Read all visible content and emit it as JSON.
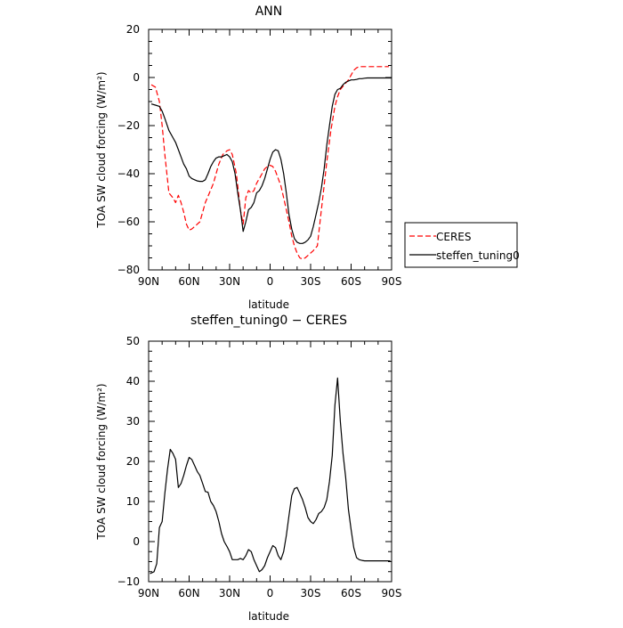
{
  "chart_data": [
    {
      "type": "line",
      "title": "ANN",
      "xlabel": "latitude",
      "ylabel": "TOA SW cloud forcing (W/m²)",
      "xlim": [
        90,
        -90
      ],
      "ylim": [
        -80,
        20
      ],
      "x_ticks": [
        90,
        60,
        30,
        0,
        -30,
        -60,
        -90
      ],
      "x_tick_labels": [
        "90N",
        "60N",
        "30N",
        "0",
        "30S",
        "60S",
        "90S"
      ],
      "y_ticks": [
        -80,
        -60,
        -40,
        -20,
        0,
        20
      ],
      "y_tick_labels": [
        "−80",
        "−60",
        "−40",
        "−20",
        "0",
        "20"
      ],
      "legend_position": "right",
      "series": [
        {
          "name": "CERES",
          "color": "#ff0000",
          "dash": "dashed",
          "x": [
            88,
            85,
            82,
            80,
            78,
            75,
            72,
            70,
            68,
            66,
            64,
            62,
            60,
            58,
            56,
            54,
            52,
            50,
            48,
            45,
            42,
            40,
            38,
            35,
            32,
            30,
            28,
            25,
            22,
            20,
            18,
            16,
            14,
            12,
            10,
            8,
            6,
            4,
            2,
            0,
            -2,
            -4,
            -6,
            -8,
            -10,
            -12,
            -14,
            -16,
            -18,
            -20,
            -22,
            -24,
            -26,
            -28,
            -30,
            -32,
            -35,
            -38,
            -40,
            -42,
            -45,
            -48,
            -50,
            -52,
            -55,
            -58,
            -60,
            -62,
            -64,
            -66,
            -68,
            -70,
            -72,
            -75,
            -78,
            -80,
            -82,
            -85,
            -88
          ],
          "values": [
            -3,
            -4,
            -10,
            -20,
            -32,
            -48,
            -50,
            -52,
            -49,
            -52,
            -56,
            -61,
            -63.5,
            -63,
            -62,
            -61,
            -60,
            -56,
            -52,
            -48,
            -44,
            -40,
            -36,
            -32,
            -30.5,
            -30,
            -32,
            -40,
            -55,
            -61,
            -50,
            -47,
            -48,
            -47,
            -44,
            -42,
            -40,
            -38,
            -37,
            -36.5,
            -37,
            -39,
            -42,
            -45,
            -50,
            -55,
            -60,
            -66,
            -70,
            -73,
            -75,
            -75.5,
            -75,
            -74,
            -73,
            -72,
            -70,
            -55,
            -45,
            -35,
            -22,
            -12,
            -8,
            -5,
            -3,
            -1,
            1,
            3,
            4,
            4.5,
            4.5,
            4.5,
            4.5,
            4.5,
            4.5,
            4.5,
            4.5,
            4.5,
            4.5
          ]
        },
        {
          "name": "steffen_tuning0",
          "color": "#000000",
          "dash": "solid",
          "x": [
            88,
            85,
            82,
            80,
            78,
            75,
            72,
            70,
            68,
            66,
            64,
            62,
            60,
            58,
            56,
            54,
            52,
            50,
            48,
            46,
            44,
            42,
            40,
            38,
            36,
            34,
            32,
            30,
            28,
            26,
            24,
            22,
            20,
            18,
            16,
            14,
            12,
            10,
            8,
            6,
            4,
            2,
            0,
            -2,
            -4,
            -6,
            -8,
            -10,
            -12,
            -14,
            -16,
            -18,
            -20,
            -22,
            -24,
            -26,
            -28,
            -30,
            -32,
            -34,
            -36,
            -38,
            -40,
            -42,
            -44,
            -46,
            -48,
            -50,
            -52,
            -54,
            -56,
            -58,
            -60,
            -62,
            -64,
            -66,
            -68,
            -70,
            -72,
            -74,
            -76,
            -78,
            -80,
            -82,
            -85,
            -88,
            -90
          ],
          "values": [
            -11,
            -11.5,
            -12,
            -14,
            -17,
            -22,
            -25,
            -27,
            -30,
            -33,
            -36,
            -38,
            -41,
            -42,
            -42.5,
            -43,
            -43.2,
            -43.2,
            -42.5,
            -40,
            -37,
            -35,
            -33.5,
            -33,
            -33,
            -32.5,
            -32,
            -33,
            -35,
            -40,
            -48,
            -55,
            -64,
            -60,
            -55,
            -54,
            -52,
            -48,
            -47,
            -45,
            -42,
            -38,
            -34,
            -31,
            -30,
            -30.5,
            -34,
            -40,
            -48,
            -57,
            -63,
            -67,
            -68.5,
            -69,
            -69,
            -68.5,
            -67.5,
            -66,
            -62,
            -57,
            -52,
            -46,
            -38,
            -28,
            -20,
            -12,
            -7,
            -5,
            -4.5,
            -3,
            -2,
            -1.5,
            -1,
            -1,
            -0.8,
            -0.5,
            -0.5,
            -0.3,
            -0.2,
            -0.2,
            -0.2,
            -0.2,
            -0.2,
            -0.2,
            -0.2,
            -0.2,
            -0.2
          ]
        }
      ]
    },
    {
      "type": "line",
      "title": "steffen_tuning0 − CERES",
      "xlabel": "latitude",
      "ylabel": "TOA SW cloud forcing (W/m²)",
      "xlim": [
        90,
        -90
      ],
      "ylim": [
        -10,
        50
      ],
      "x_ticks": [
        90,
        60,
        30,
        0,
        -30,
        -60,
        -90
      ],
      "x_tick_labels": [
        "90N",
        "60N",
        "30N",
        "0",
        "30S",
        "60S",
        "90S"
      ],
      "y_ticks": [
        -10,
        0,
        10,
        20,
        30,
        40,
        50
      ],
      "y_tick_labels": [
        "−10",
        "0",
        "10",
        "20",
        "30",
        "40",
        "50"
      ],
      "series": [
        {
          "color": "#000000",
          "dash": "solid",
          "x": [
            89,
            86,
            84,
            82,
            80,
            78,
            76,
            74,
            72,
            70,
            68,
            66,
            64,
            62,
            60,
            58,
            56,
            54,
            52,
            50,
            48,
            46,
            44,
            42,
            40,
            38,
            36,
            34,
            32,
            30,
            28,
            26,
            24,
            22,
            20,
            18,
            16,
            14,
            12,
            10,
            8,
            6,
            4,
            2,
            0,
            -2,
            -4,
            -6,
            -8,
            -10,
            -12,
            -14,
            -16,
            -18,
            -20,
            -22,
            -24,
            -26,
            -28,
            -30,
            -32,
            -34,
            -36,
            -38,
            -40,
            -42,
            -44,
            -46,
            -48,
            -50,
            -52,
            -54,
            -56,
            -58,
            -60,
            -62,
            -64,
            -66,
            -68,
            -70,
            -72,
            -74,
            -76,
            -78,
            -80,
            -82,
            -84,
            -86,
            -89
          ],
          "values": [
            -8,
            -7.5,
            -5.5,
            3.5,
            5,
            12,
            18,
            23,
            22,
            20.5,
            13.5,
            14.5,
            16.5,
            19,
            21,
            20.5,
            19,
            17.5,
            16.5,
            14.5,
            12.5,
            12.3,
            10,
            9,
            7.5,
            5,
            2,
            0,
            -1.2,
            -2.5,
            -4.5,
            -4.5,
            -4.5,
            -4.2,
            -4.5,
            -3.5,
            -2,
            -2.5,
            -4.5,
            -6,
            -7.5,
            -7,
            -6,
            -4,
            -2.5,
            -1,
            -1.5,
            -3.5,
            -4.5,
            -2.5,
            1.5,
            6.5,
            11.5,
            13.2,
            13.5,
            12,
            10.5,
            8.5,
            6,
            5,
            4.5,
            5.5,
            7,
            7.5,
            8.5,
            10.5,
            15,
            21.5,
            34,
            40.8,
            30,
            22,
            16,
            8,
            3,
            -1.5,
            -4,
            -4.5,
            -4.7,
            -4.8,
            -4.8,
            -4.8,
            -4.8,
            -4.8,
            -4.8,
            -4.8,
            -4.8,
            -4.8,
            -4.8
          ]
        }
      ]
    }
  ]
}
